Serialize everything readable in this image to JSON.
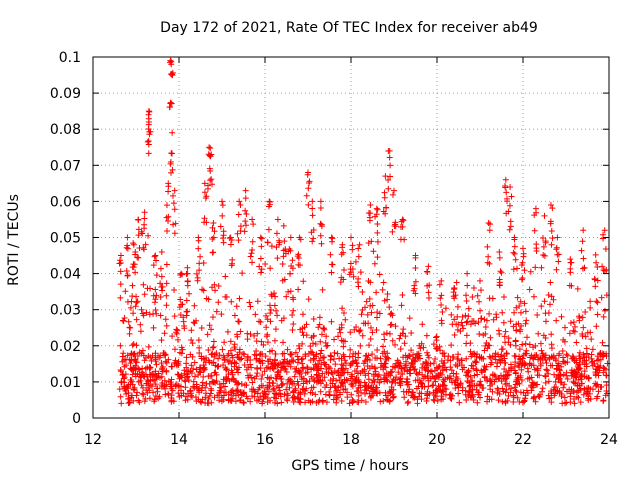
{
  "chart_data": {
    "type": "scatter",
    "title": "Day 172 of 2021, Rate Of TEC Index for receiver ab49",
    "xlabel": "GPS time / hours",
    "ylabel": "ROTI / TECUs",
    "xlim": [
      12,
      24
    ],
    "ylim": [
      0,
      0.1
    ],
    "x_ticks": [
      "12",
      "14",
      "16",
      "18",
      "20",
      "22",
      "24"
    ],
    "y_ticks": [
      "0",
      "0.01",
      "0.02",
      "0.03",
      "0.04",
      "0.05",
      "0.06",
      "0.07",
      "0.08",
      "0.09",
      "0.1"
    ],
    "grid": true,
    "marker": "+",
    "color": "#ff0000",
    "series": [
      {
        "name": "ROTI",
        "x": [
          12.65,
          12.8,
          12.95,
          13.05,
          13.2,
          13.3,
          13.3,
          13.45,
          13.6,
          13.75,
          13.8,
          13.82,
          13.84,
          13.9,
          14.05,
          14.2,
          14.45,
          14.6,
          14.7,
          14.75,
          14.8,
          15.0,
          15.2,
          15.4,
          15.55,
          15.7,
          15.9,
          16.1,
          16.3,
          16.45,
          16.6,
          16.8,
          17.0,
          17.1,
          17.3,
          17.55,
          17.8,
          18.0,
          18.2,
          18.45,
          18.6,
          18.8,
          18.9,
          19.0,
          19.2,
          19.5,
          19.8,
          20.1,
          20.4,
          20.7,
          21.0,
          21.2,
          21.45,
          21.6,
          21.7,
          21.8,
          22.0,
          22.3,
          22.5,
          22.65,
          22.8,
          23.1,
          23.4,
          23.7,
          23.9
        ],
        "y": [
          0.045,
          0.05,
          0.048,
          0.055,
          0.057,
          0.085,
          0.082,
          0.045,
          0.046,
          0.065,
          0.099,
          0.098,
          0.079,
          0.063,
          0.04,
          0.04,
          0.05,
          0.065,
          0.075,
          0.073,
          0.054,
          0.06,
          0.05,
          0.06,
          0.063,
          0.055,
          0.05,
          0.06,
          0.055,
          0.049,
          0.05,
          0.05,
          0.068,
          0.06,
          0.06,
          0.05,
          0.048,
          0.05,
          0.048,
          0.059,
          0.058,
          0.067,
          0.074,
          0.063,
          0.055,
          0.045,
          0.042,
          0.038,
          0.036,
          0.04,
          0.038,
          0.054,
          0.046,
          0.066,
          0.064,
          0.05,
          0.047,
          0.058,
          0.056,
          0.059,
          0.05,
          0.044,
          0.052,
          0.043,
          0.052
        ]
      }
    ]
  }
}
